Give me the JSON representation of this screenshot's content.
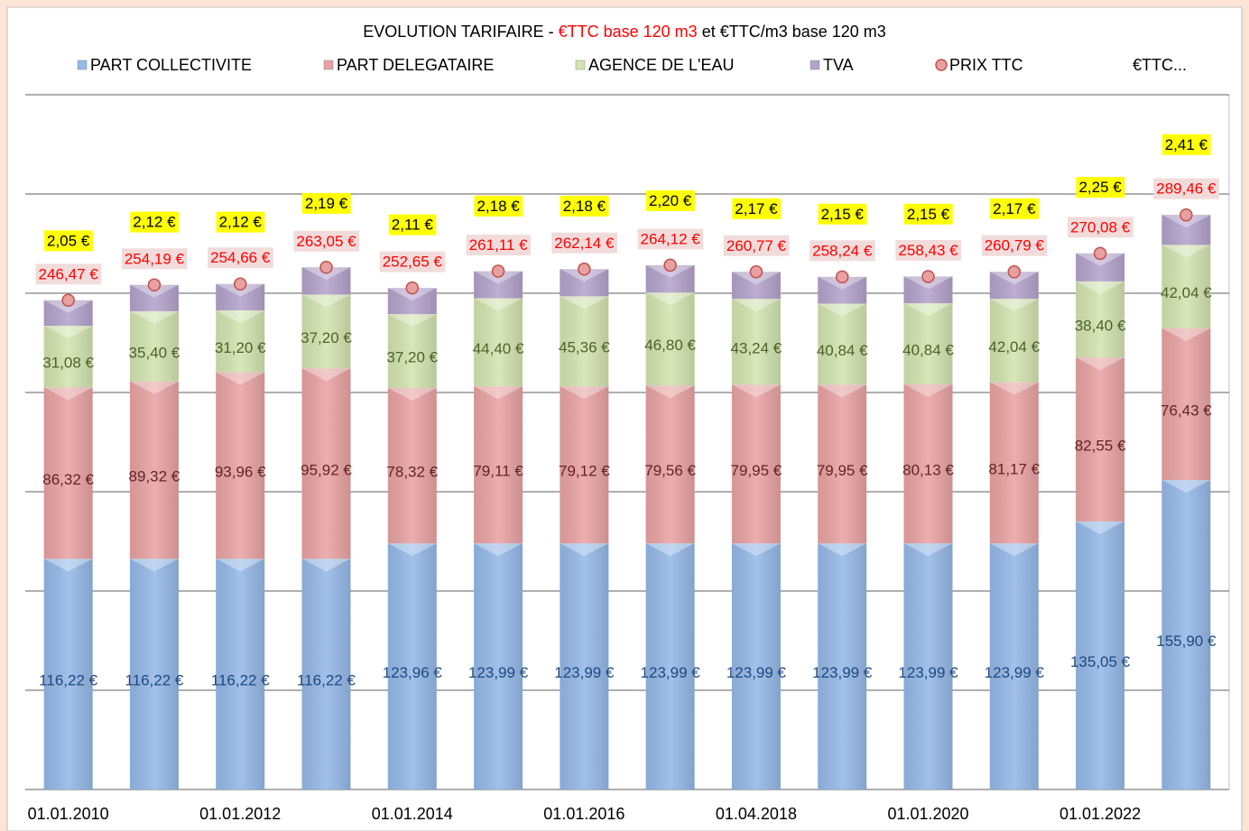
{
  "chart_data": {
    "type": "bar",
    "title": [
      "EVOLUTION TARIFAIRE -",
      "€TTC base 120 m3",
      "et €TTC/m3 base 120 m3"
    ],
    "categories": [
      "01.01.2010",
      null,
      "01.01.2012",
      null,
      "01.01.2014",
      null,
      "01.01.2016",
      null,
      "01.04.2018",
      null,
      "01.01.2020",
      null,
      "01.01.2022",
      null
    ],
    "ylim": [
      0,
      350
    ],
    "yticks": [
      0,
      50,
      100,
      150,
      200,
      250,
      300,
      350
    ],
    "y2lim": [
      0,
      2.6
    ],
    "grid": true,
    "series": [
      {
        "name": "PART COLLECTIVITE",
        "type": "bar",
        "color": "#95b9e8",
        "label_color": "#1f497d",
        "values": [
          116.22,
          116.22,
          116.22,
          116.22,
          123.96,
          123.99,
          123.99,
          123.99,
          123.99,
          123.99,
          123.99,
          123.99,
          135.05,
          155.9
        ],
        "value_labels": [
          "116,22 €",
          "116,22 €",
          "116,22 €",
          "116,22 €",
          "123,96 €",
          "123,99 €",
          "123,99 €",
          "123,99 €",
          "123,99 €",
          "123,99 €",
          "123,99 €",
          "123,99 €",
          "135,05 €",
          "155,90 €"
        ]
      },
      {
        "name": "PART DELEGATAIRE",
        "type": "bar",
        "color": "#e9a3a3",
        "label_color": "#632523",
        "values": [
          86.32,
          89.32,
          93.96,
          95.92,
          78.32,
          79.11,
          79.12,
          79.56,
          79.95,
          79.95,
          80.13,
          81.17,
          82.55,
          76.43
        ],
        "value_labels": [
          "86,32 €",
          "89,32 €",
          "93,96 €",
          "95,92 €",
          "78,32 €",
          "79,11 €",
          "79,12 €",
          "79,56 €",
          "79,95 €",
          "79,95 €",
          "80,13 €",
          "81,17 €",
          "82,55 €",
          "76,43 €"
        ]
      },
      {
        "name": "AGENCE DE L'EAU",
        "type": "bar",
        "color": "#d3e4b0",
        "label_color": "#4f6228",
        "values": [
          31.08,
          35.4,
          31.2,
          37.2,
          37.2,
          44.4,
          45.36,
          46.8,
          43.24,
          40.84,
          40.84,
          42.04,
          38.4,
          42.04
        ],
        "value_labels": [
          "31,08 €",
          "35,40 €",
          "31,20 €",
          "37,20 €",
          "37,20 €",
          "44,40 €",
          "45,36 €",
          "46,80 €",
          "43,24 €",
          "40,84 €",
          "40,84 €",
          "42,04 €",
          "38,40 €",
          "42,04 €"
        ]
      },
      {
        "name": "TVA",
        "type": "bar",
        "color": "#b4a3cc",
        "values": [
          12.85,
          13.25,
          13.28,
          13.71,
          13.17,
          13.61,
          13.67,
          13.77,
          13.59,
          13.46,
          13.47,
          13.59,
          14.08,
          15.09
        ]
      },
      {
        "name": "PRIX TTC",
        "type": "scatter",
        "color": "#e8a0a0",
        "label_color": "#ff0000",
        "values": [
          246.47,
          254.19,
          254.66,
          263.05,
          252.65,
          261.11,
          262.14,
          264.12,
          260.77,
          258.24,
          258.43,
          260.79,
          270.08,
          289.46
        ],
        "value_labels": [
          "246,47 €",
          "254,19 €",
          "254,66 €",
          "263,05 €",
          "252,65 €",
          "261,11 €",
          "262,14 €",
          "264,12 €",
          "260,77 €",
          "258,24 €",
          "258,43 €",
          "260,79 €",
          "270,08 €",
          "289,46 €"
        ]
      },
      {
        "name": "€TTC...",
        "type": "label",
        "axis": "y2",
        "color": "#ffff00",
        "label_color": "#000000",
        "values": [
          2.05,
          2.12,
          2.12,
          2.19,
          2.11,
          2.18,
          2.18,
          2.2,
          2.17,
          2.15,
          2.15,
          2.17,
          2.25,
          2.41
        ],
        "value_labels": [
          "2,05 €",
          "2,12 €",
          "2,12 €",
          "2,19 €",
          "2,11 €",
          "2,18 €",
          "2,18 €",
          "2,20 €",
          "2,17 €",
          "2,15 €",
          "2,15 €",
          "2,17 €",
          "2,25 €",
          "2,41 €"
        ]
      }
    ]
  }
}
